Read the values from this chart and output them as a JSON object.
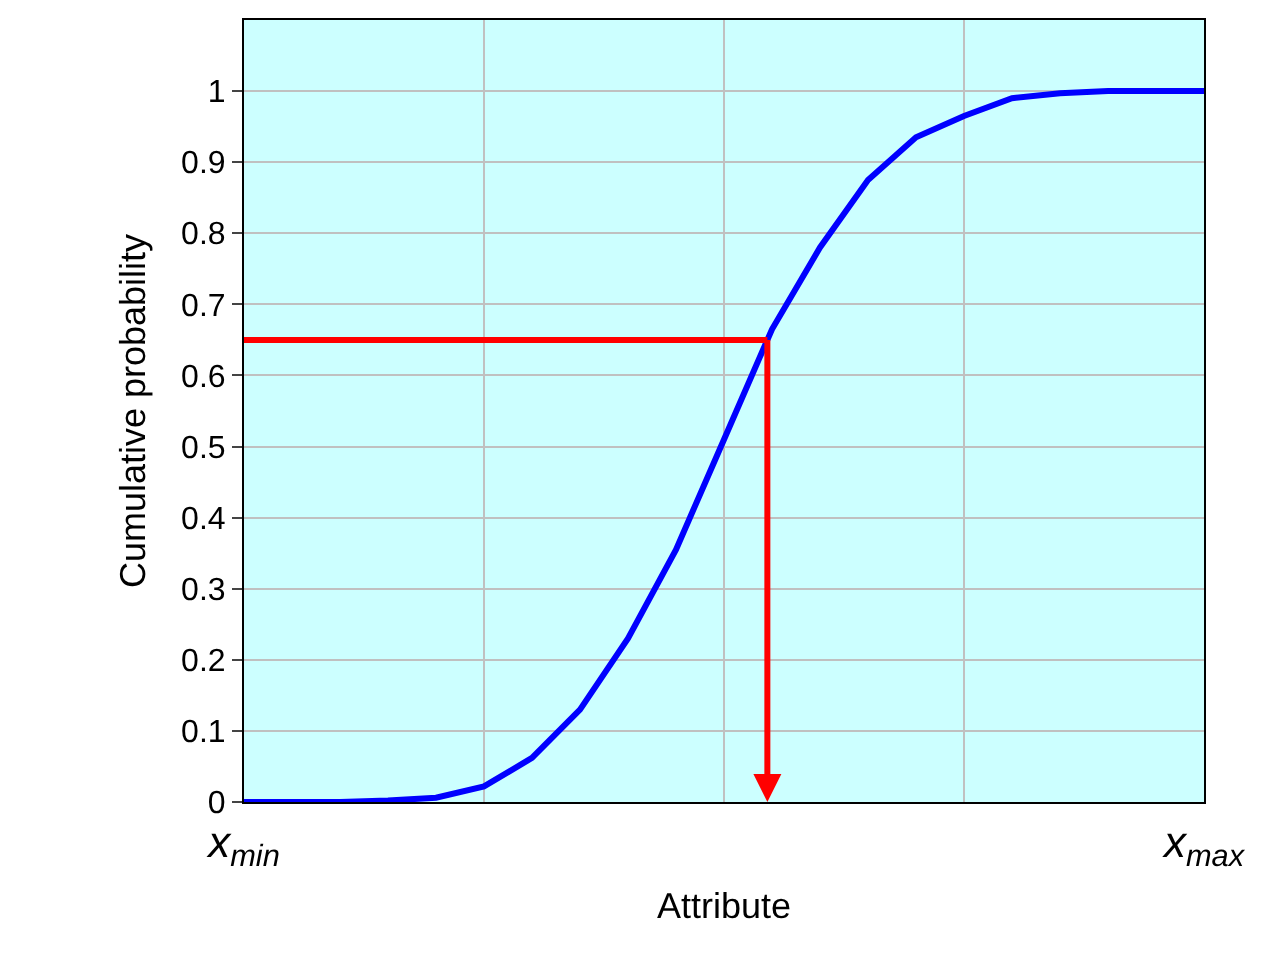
{
  "chart_data": {
    "type": "line",
    "xlabel": "Attribute",
    "ylabel": "Cumulative probability",
    "categories": [
      "x$_{min}$",
      null,
      null,
      null,
      null,
      null,
      null,
      null,
      null,
      null,
      null,
      null,
      null,
      null,
      null,
      null,
      null,
      null,
      null,
      null,
      "x$_{max}$"
    ],
    "ylim": [
      0,
      1.1
    ],
    "yticks": [
      0,
      0.1,
      0.2,
      0.3,
      0.4,
      0.5,
      0.6,
      0.7,
      0.8,
      0.9,
      1
    ],
    "grid": true,
    "marker": "none",
    "line_style": "solid",
    "series": [
      {
        "color": "#0000ff",
        "values": [
          0,
          0,
          0,
          0.002,
          0.006,
          0.022,
          0.062,
          0.13,
          0.23,
          0.355,
          0.51,
          0.665,
          0.78,
          0.875,
          0.935,
          0.965,
          0.99,
          0.997,
          1,
          1,
          1
        ]
      }
    ],
    "ref_lines": [
      {
        "axis": "y",
        "value": 0.65,
        "color": "#ff0000"
      }
    ]
  }
}
